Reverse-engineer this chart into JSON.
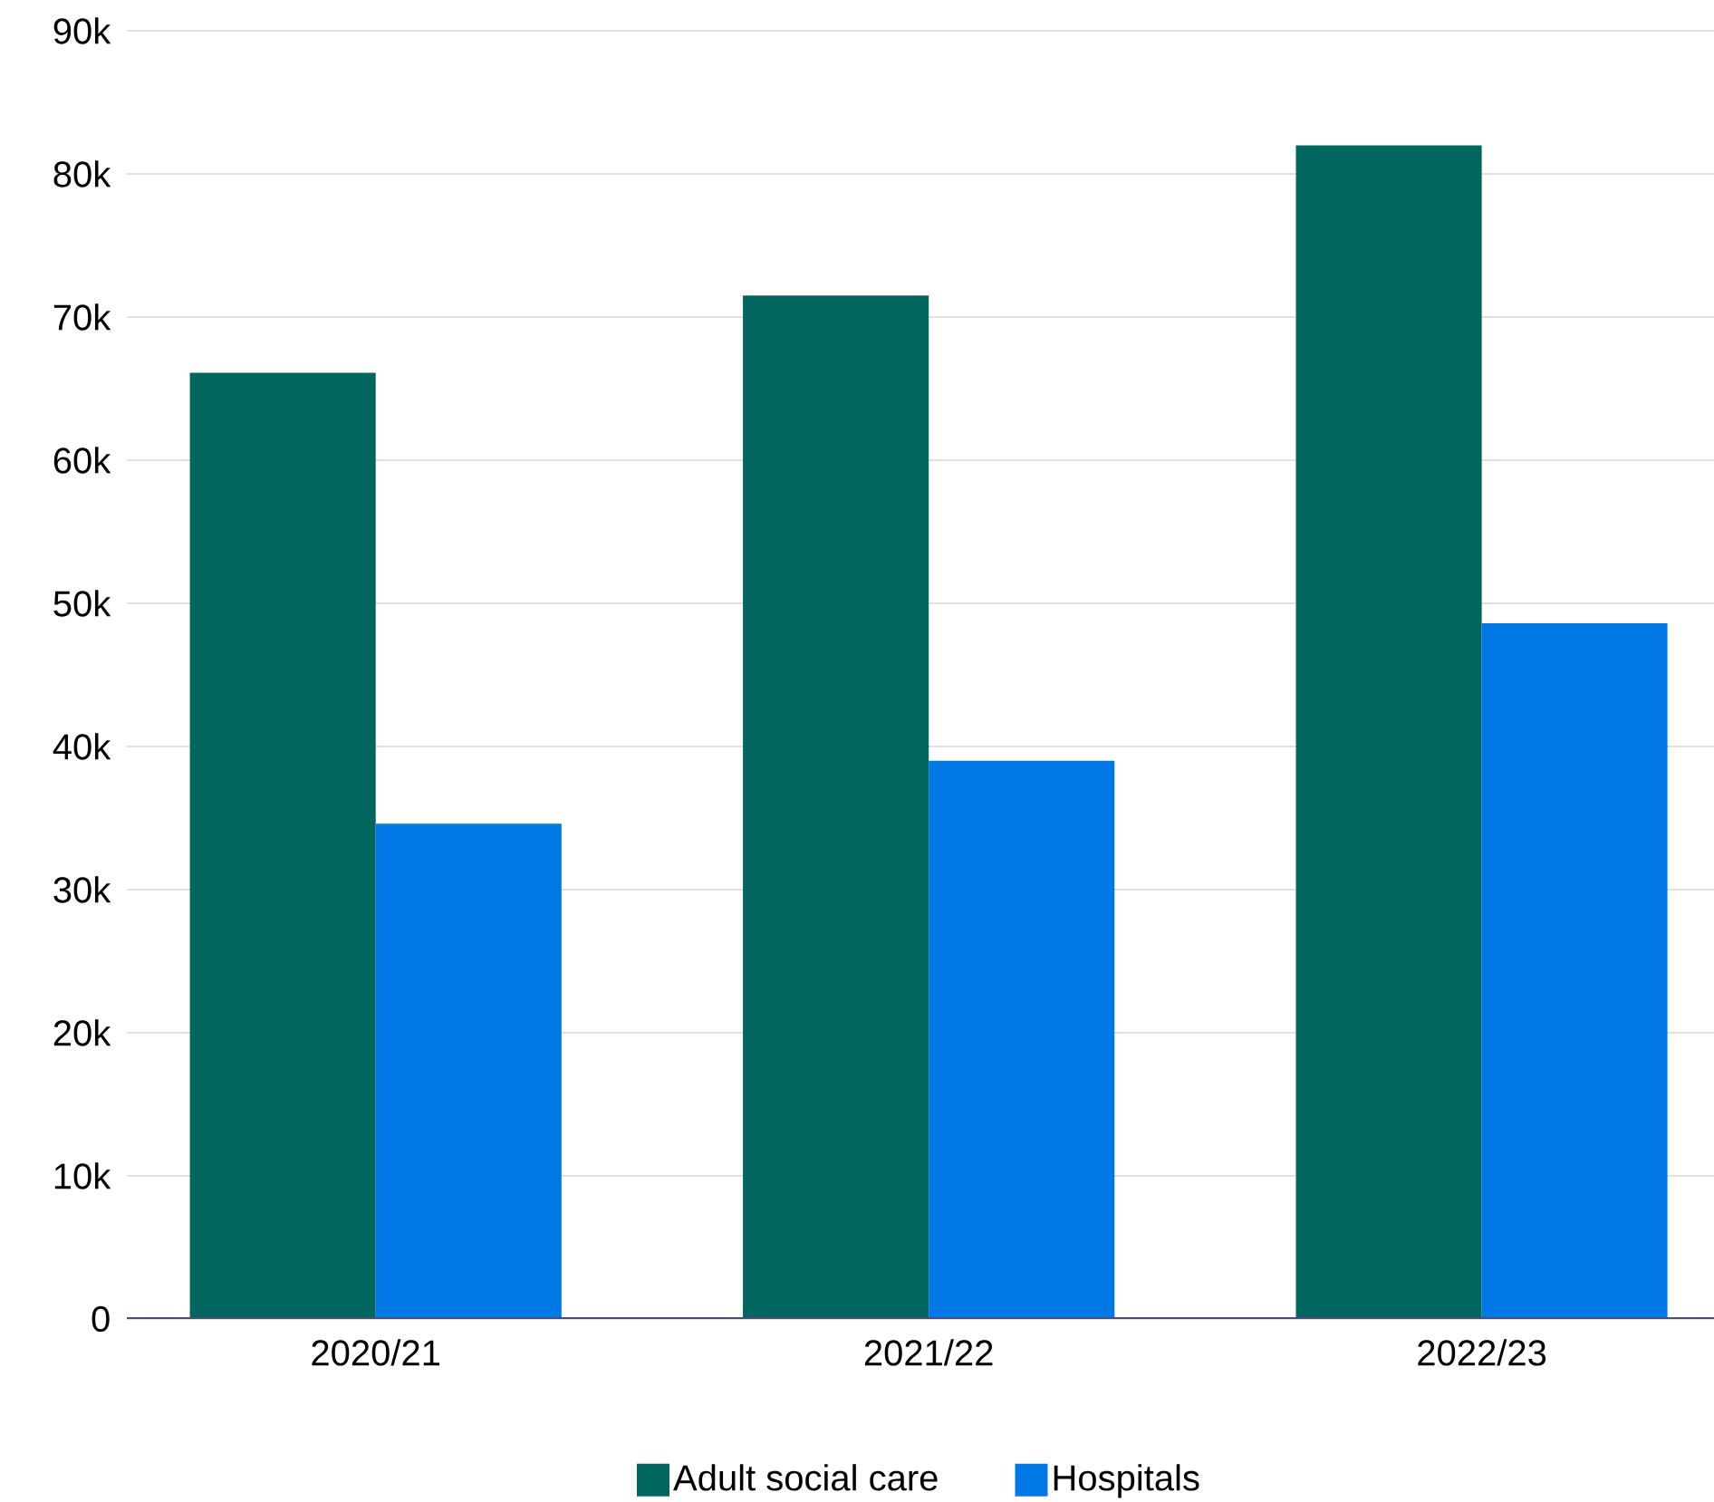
{
  "chart_data": {
    "type": "bar",
    "categories": [
      "2020/21",
      "2021/22",
      "2022/23"
    ],
    "series": [
      {
        "name": "Adult social care",
        "color": "#00665e",
        "values": [
          66100,
          71500,
          82000
        ]
      },
      {
        "name": "Hospitals",
        "color": "#0079e6",
        "values": [
          34600,
          39000,
          48600
        ]
      }
    ],
    "ylim": [
      0,
      90000
    ],
    "yticks": [
      0,
      {
        "value": 10000,
        "label": "10k"
      },
      {
        "value": 20000,
        "label": "20k"
      },
      {
        "value": 30000,
        "label": "30k"
      },
      {
        "value": 40000,
        "label": "40k"
      },
      {
        "value": 50000,
        "label": "50k"
      },
      {
        "value": 60000,
        "label": "60k"
      },
      {
        "value": 70000,
        "label": "70k"
      },
      {
        "value": 80000,
        "label": "80k"
      },
      {
        "value": 90000,
        "label": "90k"
      }
    ],
    "grid": "y",
    "legend": "bottom"
  }
}
